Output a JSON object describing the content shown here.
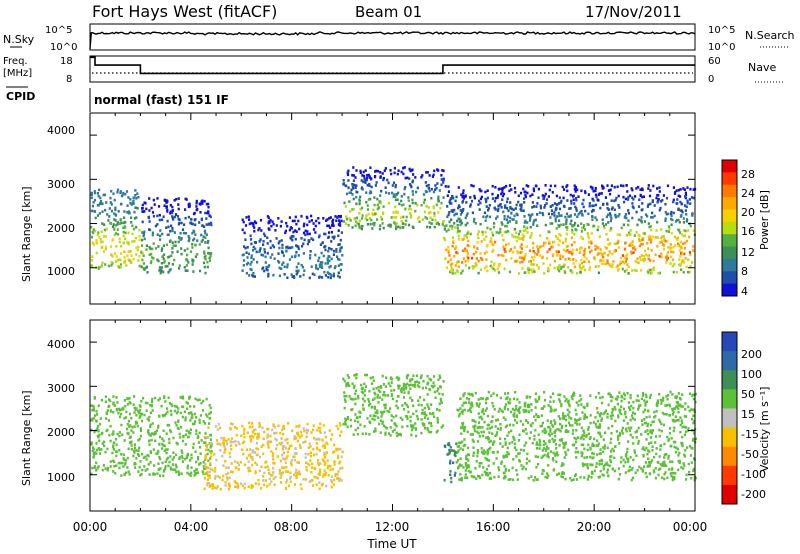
{
  "header": {
    "station": "Fort Hays West (fitACF)",
    "beam": "Beam 01",
    "date": "17/Nov/2011"
  },
  "noise_panel": {
    "left_label": "N.Sky",
    "left_ticks": [
      "10^5",
      "10^0"
    ],
    "right_label": "N.Search",
    "right_ticks": [
      "10^5",
      "10^0"
    ]
  },
  "freq_panel": {
    "left_label_1": "Freq.",
    "left_label_2": "[MHz]",
    "left_ticks": [
      "18",
      "8"
    ],
    "right_label": "Nave",
    "right_ticks": [
      "60",
      "0"
    ]
  },
  "cpid": {
    "label": "CPID",
    "text": "normal (fast) 151 IF"
  },
  "power_panel": {
    "ylabel": "Slant Range [km]",
    "yticks": [
      "4000",
      "3000",
      "2000",
      "1000"
    ],
    "colorbar_label": "Power [dB]",
    "colorbar_ticks": [
      "28",
      "24",
      "20",
      "16",
      "12",
      "8",
      "4"
    ],
    "colorbar_colors": [
      "#e00000",
      "#ff3a00",
      "#ff7a00",
      "#ffa800",
      "#f7d000",
      "#b8dc10",
      "#56b040",
      "#3d8f56",
      "#2e7a9a",
      "#1e4ea8",
      "#1010d8"
    ]
  },
  "velocity_panel": {
    "ylabel": "Slant Range [km]",
    "yticks": [
      "4000",
      "3000",
      "2000",
      "1000"
    ],
    "colorbar_label": "Velocity [m s⁻¹]",
    "colorbar_ticks": [
      "200",
      "100",
      "50",
      "15",
      "-15",
      "-50",
      "-100",
      "-200"
    ],
    "colorbar_colors": [
      "#2848b8",
      "#2d6aa8",
      "#3d8f56",
      "#5cc038",
      "#c0c0c0",
      "#f7c000",
      "#ff8a00",
      "#ff3a00",
      "#e00000"
    ]
  },
  "xaxis": {
    "label": "Time UT",
    "ticks": [
      "00:00",
      "04:00",
      "08:00",
      "12:00",
      "16:00",
      "20:00",
      "00:00"
    ]
  },
  "chart_data": {
    "type": "heatmap",
    "title": "Fort Hays West (fitACF)  Beam 01  17/Nov/2011",
    "xlabel": "Time UT",
    "x_range_hours": [
      0,
      24
    ],
    "panels": [
      {
        "name": "N.Sky / N.Search",
        "scale": "log",
        "ylim_sky": [
          "10^0",
          "10^5"
        ],
        "ylim_search": [
          "10^0",
          "10^5"
        ]
      },
      {
        "name": "Freq. / Nave",
        "freq_mhz_ylim": [
          8,
          18
        ],
        "nave_ylim": [
          0,
          60
        ],
        "freq_steps": [
          {
            "from_hour": 0.0,
            "to_hour": 0.2,
            "freq_mhz": 17.5
          },
          {
            "from_hour": 0.2,
            "to_hour": 2.0,
            "freq_mhz": 14.5
          },
          {
            "from_hour": 2.0,
            "to_hour": 14.0,
            "freq_mhz": 11.3
          },
          {
            "from_hour": 14.0,
            "to_hour": 24.0,
            "freq_mhz": 14.5
          }
        ]
      },
      {
        "name": "Power",
        "ylabel": "Slant Range [km]",
        "ylim_km": [
          180,
          4500
        ],
        "colorbar": {
          "label": "Power [dB]",
          "ticks": [
            28,
            24,
            20,
            16,
            12,
            8,
            4
          ]
        },
        "echo_regions": [
          {
            "from_hour": 0.0,
            "to_hour": 2.0,
            "range_km": [
              1000,
              2800
            ],
            "power_db": [
              8,
              22
            ]
          },
          {
            "from_hour": 2.0,
            "to_hour": 4.8,
            "range_km": [
              900,
              2600
            ],
            "power_db": [
              4,
              16
            ]
          },
          {
            "from_hour": 6.0,
            "to_hour": 10.0,
            "range_km": [
              800,
              2200
            ],
            "power_db": [
              4,
              10
            ]
          },
          {
            "from_hour": 10.0,
            "to_hour": 14.0,
            "range_km": [
              1900,
              3300
            ],
            "power_db": [
              4,
              20
            ]
          },
          {
            "from_hour": 14.0,
            "to_hour": 24.0,
            "range_km": [
              900,
              2900
            ],
            "power_db": [
              4,
              28
            ]
          }
        ]
      },
      {
        "name": "Velocity",
        "ylabel": "Slant Range [km]",
        "ylim_km": [
          180,
          4500
        ],
        "colorbar": {
          "label": "Velocity [m s-1]",
          "ticks": [
            200,
            100,
            50,
            15,
            -15,
            -50,
            -100,
            -200
          ]
        },
        "echo_regions": [
          {
            "from_hour": 0.0,
            "to_hour": 4.8,
            "range_km": [
              1000,
              2800
            ],
            "velocity_ms": [
              -15,
              15
            ]
          },
          {
            "from_hour": 4.5,
            "to_hour": 10.0,
            "range_km": [
              700,
              2200
            ],
            "velocity_ms": [
              -100,
              -30
            ]
          },
          {
            "from_hour": 10.0,
            "to_hour": 14.0,
            "range_km": [
              1900,
              3300
            ],
            "velocity_ms": [
              -15,
              15
            ]
          },
          {
            "from_hour": 14.0,
            "to_hour": 14.5,
            "range_km": [
              800,
              1800
            ],
            "velocity_ms": [
              30,
              60
            ]
          },
          {
            "from_hour": 14.5,
            "to_hour": 24.0,
            "range_km": [
              900,
              2900
            ],
            "velocity_ms": [
              -15,
              15
            ]
          }
        ]
      }
    ]
  }
}
